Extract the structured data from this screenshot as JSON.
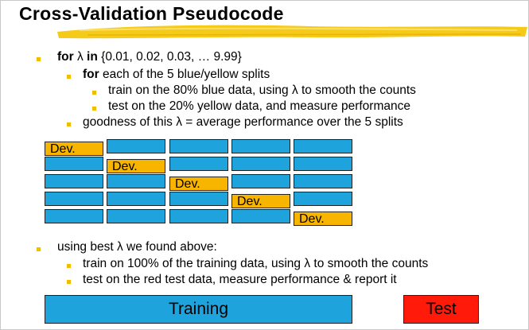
{
  "title": "Cross-Validation Pseudocode",
  "lines": {
    "l1_kw": "for",
    "l1_var": "λ",
    "l1_kw2": "in",
    "l1_rest": "{0.01, 0.02, 0.03, … 9.99}",
    "l2_kw": "for",
    "l2_rest": "each of the 5 blue/yellow splits",
    "l3": "train on the 80% blue data, using λ to smooth the counts",
    "l4": "test on the 20% yellow data, and measure performance",
    "l5": "goodness of this λ = average performance over the 5 splits",
    "l6": "using best λ we found above:",
    "l7": "train on 100% of the training data, using λ to smooth the counts",
    "l8": "test on the red test data, measure performance & report it"
  },
  "fold_label": "Dev.",
  "folds": [
    {
      "dev_column": 1
    },
    {
      "dev_column": 2
    },
    {
      "dev_column": 3
    },
    {
      "dev_column": 4
    },
    {
      "dev_column": 5
    }
  ],
  "bottom": {
    "training_label": "Training",
    "test_label": "Test"
  },
  "colors": {
    "accent_bullet": "#f0bd00",
    "blue_split": "#1fa3dd",
    "yellow_split": "#f8b500",
    "test_red": "#ff1a0a"
  }
}
